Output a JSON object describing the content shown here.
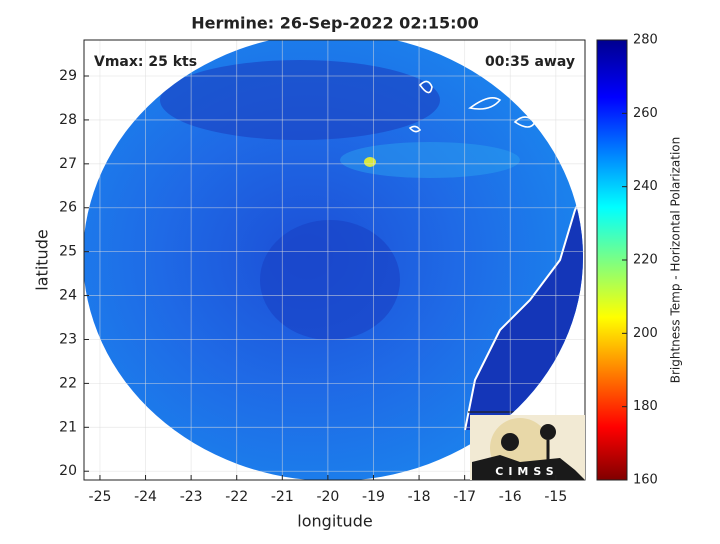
{
  "chart_data": {
    "type": "image",
    "title": "Hermine: 26-Sep-2022 02:15:00",
    "xlabel": "longitude",
    "ylabel": "latitude",
    "xlim": [
      -25.35,
      -14.36
    ],
    "xticks": [
      -25,
      -24,
      -23,
      -22,
      -21,
      -20,
      -19,
      -18,
      -17,
      -16,
      -15
    ],
    "ylim": [
      19.8,
      29.82
    ],
    "yticks": [
      20,
      21,
      22,
      23,
      24,
      25,
      26,
      27,
      28,
      29
    ],
    "grid": true,
    "annotations": [
      "Vmax: 25 kts",
      "00:35 away"
    ],
    "colorbar": {
      "label": "Brightness Temp - Horizontal Polarization",
      "lim": [
        160,
        280
      ],
      "ticks": [
        160,
        180,
        200,
        220,
        240,
        260,
        280
      ]
    },
    "logo": "CIMSS"
  }
}
